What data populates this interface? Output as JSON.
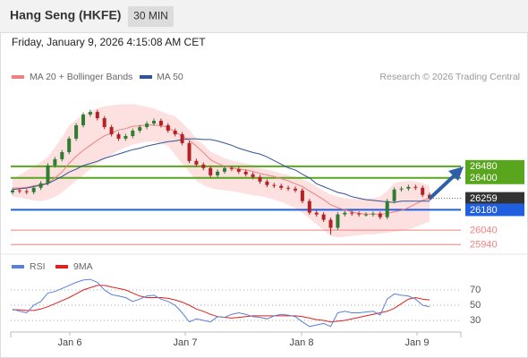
{
  "chart_data": {
    "type": "candlestick",
    "title": "Hang Seng (HKFE)",
    "interval": "30 MIN",
    "timestamp": "Friday, January 9, 2026 4:15:08 AM CET",
    "copyright": "Research © 2026 Trading Central",
    "ylim": [
      25880,
      27010
    ],
    "up_color": "#2e7d32",
    "down_color": "#b22222",
    "open": [
      26300,
      26314,
      26308,
      26302,
      26332,
      26363,
      26486,
      26529,
      26578,
      26671,
      26763,
      26837,
      26855,
      26812,
      26751,
      26701,
      26671,
      26689,
      26726,
      26751,
      26775,
      26794,
      26763,
      26726,
      26701,
      26640,
      26517,
      26492,
      26468,
      26418,
      26443,
      26468,
      26462,
      26443,
      26425,
      26406,
      26375,
      26351,
      26345,
      26332,
      26326,
      26314,
      26240,
      26160,
      26148,
      26111,
      26056,
      26148,
      26160,
      26154,
      26148,
      26148,
      26154,
      26129,
      26240,
      26320,
      26326,
      26338,
      26332,
      26283
    ],
    "high": [
      26329,
      26329,
      26323,
      26347,
      26378,
      26501,
      26544,
      26593,
      26686,
      26778,
      26852,
      26870,
      26870,
      26827,
      26766,
      26716,
      26704,
      26741,
      26766,
      26790,
      26809,
      26809,
      26778,
      26741,
      26716,
      26655,
      26532,
      26507,
      26483,
      26458,
      26483,
      26483,
      26477,
      26458,
      26440,
      26421,
      26390,
      26366,
      26360,
      26347,
      26341,
      26329,
      26255,
      26175,
      26163,
      26126,
      26163,
      26175,
      26175,
      26169,
      26163,
      26169,
      26169,
      26255,
      26335,
      26341,
      26353,
      26353,
      26347,
      26298
    ],
    "low": [
      26285,
      26293,
      26287,
      26287,
      26317,
      26348,
      26471,
      26514,
      26563,
      26656,
      26748,
      26822,
      26797,
      26736,
      26686,
      26656,
      26656,
      26674,
      26711,
      26736,
      26760,
      26748,
      26711,
      26686,
      26625,
      26502,
      26477,
      26453,
      26403,
      26403,
      26428,
      26447,
      26428,
      26410,
      26391,
      26360,
      26336,
      26330,
      26317,
      26311,
      26299,
      26225,
      26145,
      26133,
      26096,
      26010,
      26041,
      26133,
      26139,
      26133,
      26133,
      26133,
      26114,
      26114,
      26225,
      26305,
      26311,
      26317,
      26268,
      26244
    ],
    "close": [
      26314,
      26308,
      26302,
      26332,
      26363,
      26486,
      26529,
      26578,
      26671,
      26763,
      26837,
      26855,
      26812,
      26751,
      26701,
      26671,
      26689,
      26726,
      26751,
      26775,
      26794,
      26763,
      26726,
      26701,
      26640,
      26517,
      26492,
      26468,
      26418,
      26443,
      26468,
      26462,
      26443,
      26425,
      26406,
      26375,
      26351,
      26345,
      26332,
      26326,
      26314,
      26240,
      26160,
      26148,
      26111,
      26056,
      26148,
      26160,
      26154,
      26148,
      26148,
      26154,
      26129,
      26240,
      26320,
      26326,
      26338,
      26332,
      26283,
      26259
    ],
    "bands": {
      "name": "MA 20 + Bollinger Bands",
      "color": "#f08080",
      "fill": "#fde0e0",
      "upper": [
        26395,
        26420,
        26450,
        26480,
        26510,
        26545,
        26610,
        26680,
        26760,
        26800,
        26835,
        26860,
        26880,
        26895,
        26900,
        26905,
        26910,
        26910,
        26900,
        26890,
        26880,
        26860,
        26840,
        26825,
        26780,
        26730,
        26670,
        26630,
        26580,
        26560,
        26535,
        26520,
        26510,
        26500,
        26490,
        26470,
        26460,
        26445,
        26430,
        26420,
        26405,
        26390,
        26370,
        26340,
        26310,
        26285,
        26270,
        26260,
        26255,
        26255,
        26260,
        26260,
        26270,
        26310,
        26365,
        26375,
        26380,
        26375,
        26365,
        26345
      ],
      "lower": [
        26270,
        26265,
        26255,
        26245,
        26240,
        26250,
        26270,
        26300,
        26340,
        26380,
        26420,
        26460,
        26500,
        26530,
        26560,
        26590,
        26610,
        26630,
        26640,
        26650,
        26650,
        26640,
        26620,
        26560,
        26500,
        26440,
        26380,
        26350,
        26330,
        26320,
        26315,
        26310,
        26300,
        26290,
        26280,
        26275,
        26265,
        26250,
        26235,
        26215,
        26190,
        26160,
        26120,
        26080,
        26040,
        26000,
        25990,
        25995,
        26000,
        26005,
        26010,
        26010,
        26015,
        26020,
        26030,
        26035,
        26045,
        26060,
        26080,
        26100
      ],
      "values": [
        26330,
        26330,
        26335,
        26345,
        26355,
        26365,
        26400,
        26440,
        26500,
        26550,
        26590,
        26625,
        26660,
        26690,
        26710,
        26730,
        26740,
        26755,
        26760,
        26765,
        26765,
        26760,
        26750,
        26715,
        26690,
        26660,
        26620,
        26575,
        26525,
        26500,
        26480,
        26470,
        26460,
        26455,
        26445,
        26430,
        26420,
        26410,
        26395,
        26380,
        26360,
        26340,
        26310,
        26280,
        26250,
        26215,
        26195,
        26180,
        26165,
        26155,
        26150,
        26150,
        26150,
        26155,
        26165,
        26175,
        26195,
        26220,
        26245,
        26260
      ]
    },
    "ma50": {
      "name": "MA 50",
      "color": "#2f5597",
      "values": [
        26320,
        26325,
        26330,
        26340,
        26350,
        26360,
        26385,
        26410,
        26440,
        26460,
        26485,
        26500,
        26515,
        26535,
        26550,
        26565,
        26580,
        26595,
        26605,
        26620,
        26630,
        26640,
        26650,
        26655,
        26665,
        26670,
        26670,
        26665,
        26665,
        26655,
        26640,
        26625,
        26605,
        26590,
        26575,
        26565,
        26545,
        26520,
        26495,
        26470,
        26455,
        26425,
        26400,
        26360,
        26340,
        26320,
        26300,
        26290,
        26270,
        26260,
        26250,
        26245,
        26240,
        26235,
        26230,
        26240,
        26240,
        26240,
        26240,
        26240
      ]
    },
    "levels": [
      {
        "value": 26480,
        "color": "#5aa51e",
        "boxed": true
      },
      {
        "value": 26400,
        "color": "#5aa51e",
        "boxed": true
      },
      {
        "value": 26259,
        "color": "#333333",
        "boxed": true,
        "current": true
      },
      {
        "value": 26180,
        "color": "#1f5fe0",
        "boxed": true
      },
      {
        "value": 26040,
        "color": "#f08080",
        "boxed": false
      },
      {
        "value": 25940,
        "color": "#f08080",
        "boxed": false
      }
    ],
    "xtick_labels": [
      "Jan 6",
      "Jan 7",
      "Jan 8",
      "Jan 9"
    ],
    "rsi": {
      "ylim": [
        15,
        100
      ],
      "yticks": [
        70,
        50,
        30
      ],
      "series": [
        {
          "name": "RSI",
          "color": "#5b7fd6",
          "values": [
            45,
            42,
            40,
            50,
            55,
            66,
            68,
            72,
            76,
            80,
            83,
            84,
            80,
            70,
            64,
            62,
            60,
            55,
            58,
            62,
            63,
            58,
            55,
            50,
            40,
            28,
            32,
            30,
            28,
            35,
            34,
            38,
            40,
            38,
            35,
            34,
            32,
            36,
            38,
            37,
            35,
            28,
            22,
            24,
            26,
            22,
            40,
            42,
            40,
            40,
            41,
            42,
            37,
            58,
            65,
            63,
            62,
            58,
            50,
            48
          ]
        },
        {
          "name": "9MA",
          "color": "#e02020",
          "values": [
            44,
            44,
            43,
            43,
            45,
            48,
            52,
            56,
            60,
            65,
            70,
            73,
            76,
            76,
            74,
            72,
            70,
            66,
            62,
            60,
            60,
            60,
            59,
            57,
            54,
            50,
            45,
            42,
            38,
            35,
            34,
            33,
            34,
            35,
            36,
            36,
            36,
            36,
            36,
            36,
            36,
            35,
            33,
            31,
            30,
            28,
            29,
            30,
            32,
            34,
            36,
            38,
            40,
            42,
            46,
            52,
            58,
            60,
            58,
            57
          ]
        }
      ]
    }
  }
}
